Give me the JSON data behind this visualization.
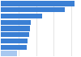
{
  "values": [
    840,
    729,
    469,
    337,
    327,
    318,
    307,
    298,
    186
  ],
  "bar_color": "#3a7fd4",
  "last_bar_color": "#a8c8f0",
  "background_color": "#ffffff",
  "xlim_max": 900,
  "bar_height": 0.82,
  "grid_color": "#d0d0d0",
  "grid_values": [
    200,
    400,
    600,
    800
  ]
}
